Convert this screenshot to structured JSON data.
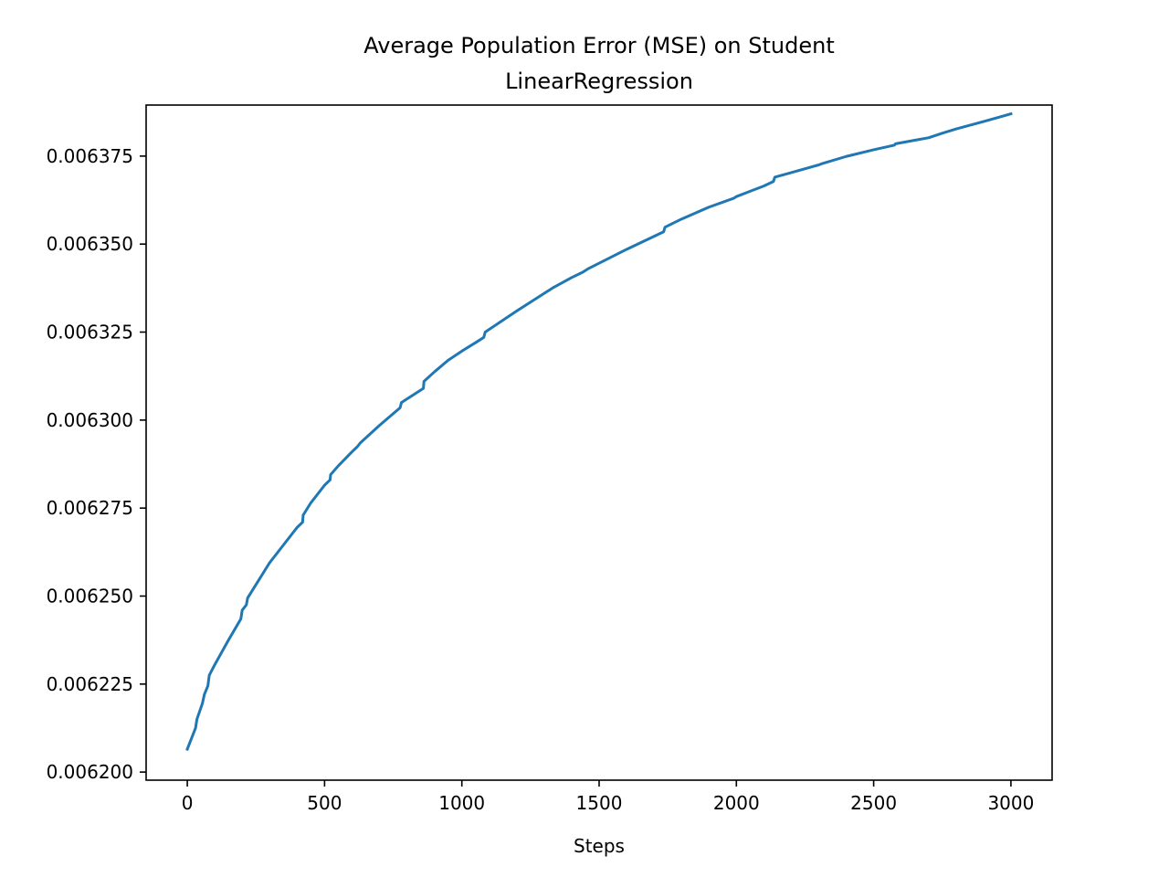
{
  "chart_data": {
    "type": "line",
    "title_lines": [
      "Average Population Error (MSE) on Student",
      "LinearRegression"
    ],
    "xlabel": "Steps",
    "ylabel": "",
    "xlim": [
      -150,
      3150
    ],
    "ylim": [
      0.0061977,
      0.0063895
    ],
    "xticks": [
      0,
      500,
      1000,
      1500,
      2000,
      2500,
      3000
    ],
    "xtick_labels": [
      "0",
      "500",
      "1000",
      "1500",
      "2000",
      "2500",
      "3000"
    ],
    "yticks": [
      0.0062,
      0.006225,
      0.00625,
      0.006275,
      0.0063,
      0.006325,
      0.00635,
      0.006375
    ],
    "ytick_labels": [
      "0.006200",
      "0.006225",
      "0.006250",
      "0.006275",
      "0.006300",
      "0.006325",
      "0.006350",
      "0.006375"
    ],
    "grid": false,
    "legend": "none",
    "series": [
      {
        "color": "#1f77b4",
        "x": [
          0,
          30,
          35,
          55,
          62,
          75,
          80,
          100,
          150,
          195,
          200,
          215,
          220,
          260,
          300,
          350,
          400,
          420,
          422,
          450,
          500,
          520,
          522,
          550,
          600,
          620,
          630,
          700,
          775,
          780,
          860,
          862,
          900,
          950,
          1000,
          1050,
          1080,
          1085,
          1200,
          1300,
          1330,
          1400,
          1440,
          1450,
          1460,
          1600,
          1735,
          1740,
          1800,
          1900,
          1990,
          2000,
          2050,
          2100,
          2135,
          2140,
          2200,
          2300,
          2310,
          2400,
          2500,
          2575,
          2580,
          2650,
          2700,
          2750,
          2800,
          2900,
          3000
        ],
        "y": [
          0.0062065,
          0.0062125,
          0.006215,
          0.0062195,
          0.006222,
          0.0062245,
          0.0062275,
          0.0062305,
          0.0062375,
          0.0062435,
          0.006246,
          0.0062475,
          0.0062495,
          0.0062545,
          0.0062595,
          0.0062645,
          0.0062695,
          0.006271,
          0.006273,
          0.0062765,
          0.0062815,
          0.006283,
          0.0062845,
          0.006287,
          0.006291,
          0.0062925,
          0.0062935,
          0.0062985,
          0.0063035,
          0.006305,
          0.006309,
          0.006311,
          0.0063137,
          0.006317,
          0.0063196,
          0.006322,
          0.0063235,
          0.006325,
          0.006331,
          0.006336,
          0.0063375,
          0.0063405,
          0.006342,
          0.0063425,
          0.006343,
          0.0063485,
          0.0063535,
          0.0063548,
          0.0063571,
          0.0063605,
          0.006363,
          0.0063635,
          0.006365,
          0.0063665,
          0.0063678,
          0.006369,
          0.0063703,
          0.0063725,
          0.0063728,
          0.0063749,
          0.0063768,
          0.0063781,
          0.0063785,
          0.0063795,
          0.0063802,
          0.0063815,
          0.0063827,
          0.0063848,
          0.006387
        ]
      }
    ]
  }
}
